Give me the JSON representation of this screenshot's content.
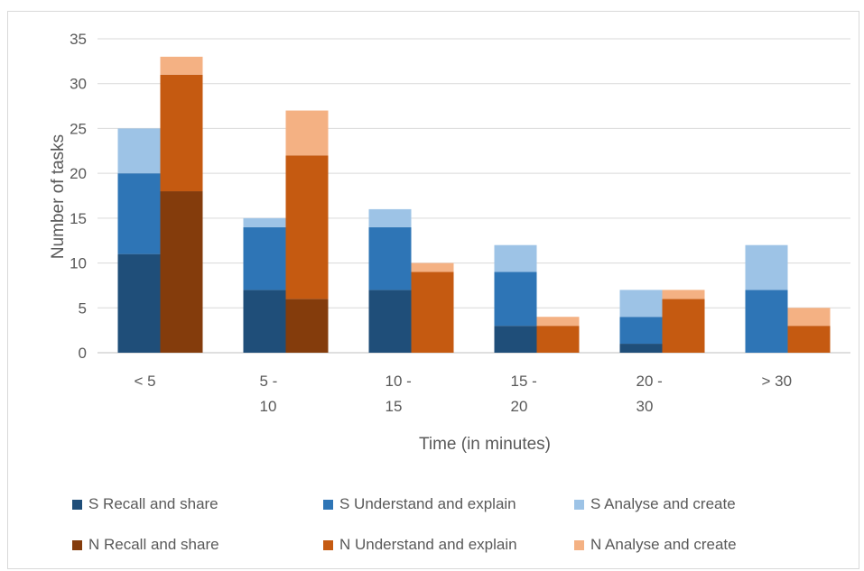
{
  "chart_data": {
    "type": "bar",
    "xlabel": "Time (in minutes)",
    "ylabel": "Number of tasks",
    "ylim": [
      0,
      35
    ],
    "yticks": [
      0,
      5,
      10,
      15,
      20,
      25,
      30,
      35
    ],
    "grid": true,
    "legend_position": "bottom",
    "categories": [
      [
        "< 5"
      ],
      [
        "5 -",
        "10"
      ],
      [
        "10 -",
        "15"
      ],
      [
        "15 -",
        "20"
      ],
      [
        "20 -",
        "30"
      ],
      [
        "> 30"
      ]
    ],
    "stacks": [
      {
        "name": "S",
        "series": [
          {
            "name": "S Recall and share",
            "color": "#1F4E79",
            "values": [
              11,
              7,
              7,
              3,
              1,
              0
            ]
          },
          {
            "name": "S Understand and explain",
            "color": "#2E75B6",
            "values": [
              9,
              7,
              7,
              6,
              3,
              7
            ]
          },
          {
            "name": "S Analyse and create",
            "color": "#9DC3E6",
            "values": [
              5,
              1,
              2,
              3,
              3,
              5
            ]
          }
        ]
      },
      {
        "name": "N",
        "series": [
          {
            "name": "N Recall and share",
            "color": "#843C0C",
            "values": [
              18,
              6,
              0,
              0,
              0,
              0
            ]
          },
          {
            "name": "N Understand and explain",
            "color": "#C55A11",
            "values": [
              13,
              16,
              9,
              3,
              6,
              3
            ]
          },
          {
            "name": "N Analyse and create",
            "color": "#F4B183",
            "values": [
              2,
              5,
              1,
              1,
              1,
              2
            ]
          }
        ]
      }
    ]
  }
}
